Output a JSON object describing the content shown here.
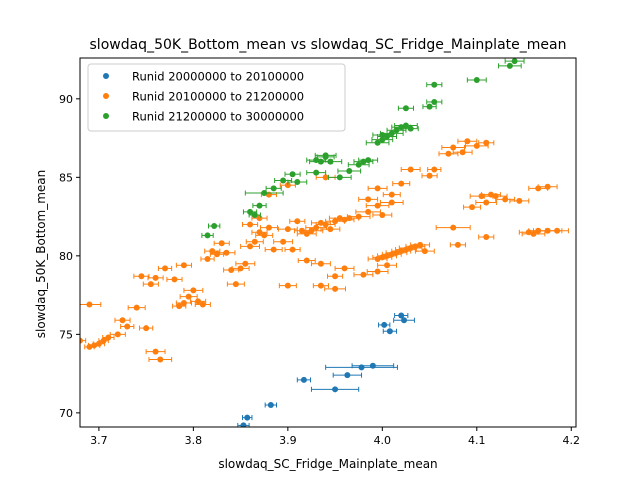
{
  "chart_data": {
    "type": "scatter",
    "title": "slowdaq_50K_Bottom_mean vs slowdaq_SC_Fridge_Mainplate_mean",
    "xlabel": "slowdaq_SC_Fridge_Mainplate_mean",
    "ylabel": "slowdaq_50K_Bottom_mean",
    "xlim": [
      3.68,
      4.205
    ],
    "ylim": [
      69.1,
      92.6
    ],
    "xticks": [
      3.7,
      3.8,
      3.9,
      4.0,
      4.1,
      4.2
    ],
    "xtick_labels": [
      "3.7",
      "3.8",
      "3.9",
      "4.0",
      "4.1",
      "4.2"
    ],
    "yticks": [
      70,
      75,
      80,
      85,
      90
    ],
    "ytick_labels": [
      "70",
      "75",
      "80",
      "85",
      "90"
    ],
    "grid": false,
    "legend_position": "upper-left",
    "series": [
      {
        "name": "Runid 20000000 to 20100000",
        "color": "#1f77b4",
        "points": [
          [
            3.853,
            69.2,
            0.006
          ],
          [
            3.857,
            69.7,
            0.005
          ],
          [
            3.882,
            70.5,
            0.006
          ],
          [
            3.917,
            72.1,
            0.007
          ],
          [
            3.95,
            71.5,
            0.025
          ],
          [
            3.963,
            72.4,
            0.015
          ],
          [
            3.978,
            72.9,
            0.038
          ],
          [
            3.99,
            73.0,
            0.022
          ],
          [
            4.002,
            75.6,
            0.006
          ],
          [
            4.008,
            75.2,
            0.007
          ],
          [
            4.02,
            76.2,
            0.007
          ],
          [
            4.023,
            75.9,
            0.011
          ]
        ]
      },
      {
        "name": "Runid 20100000 to 21200000",
        "color": "#ff7f0e",
        "points": [
          [
            3.68,
            74.6,
            0.006
          ],
          [
            3.69,
            74.2,
            0.005
          ],
          [
            3.695,
            74.3,
            0.006
          ],
          [
            3.7,
            74.4,
            0.006
          ],
          [
            3.705,
            74.6,
            0.005
          ],
          [
            3.71,
            74.8,
            0.006
          ],
          [
            3.69,
            76.9,
            0.012
          ],
          [
            3.72,
            75.0,
            0.008
          ],
          [
            3.725,
            75.9,
            0.008
          ],
          [
            3.73,
            75.5,
            0.007
          ],
          [
            3.74,
            76.7,
            0.009
          ],
          [
            3.745,
            78.7,
            0.008
          ],
          [
            3.75,
            75.4,
            0.007
          ],
          [
            3.76,
            73.9,
            0.01
          ],
          [
            3.765,
            73.4,
            0.012
          ],
          [
            3.755,
            78.2,
            0.008
          ],
          [
            3.76,
            78.6,
            0.008
          ],
          [
            3.77,
            79.2,
            0.007
          ],
          [
            3.78,
            78.5,
            0.008
          ],
          [
            3.785,
            76.8,
            0.007
          ],
          [
            3.79,
            77.0,
            0.008
          ],
          [
            3.79,
            79.4,
            0.008
          ],
          [
            3.795,
            77.4,
            0.009
          ],
          [
            3.8,
            77.8,
            0.01
          ],
          [
            3.805,
            77.1,
            0.008
          ],
          [
            3.81,
            76.9,
            0.008
          ],
          [
            3.815,
            79.8,
            0.007
          ],
          [
            3.82,
            80.3,
            0.008
          ],
          [
            3.825,
            80.1,
            0.007
          ],
          [
            3.83,
            80.8,
            0.008
          ],
          [
            3.835,
            80.2,
            0.009
          ],
          [
            3.84,
            79.1,
            0.008
          ],
          [
            3.845,
            78.2,
            0.009
          ],
          [
            3.85,
            79.2,
            0.009
          ],
          [
            3.855,
            79.5,
            0.01
          ],
          [
            3.86,
            80.6,
            0.01
          ],
          [
            3.865,
            80.9,
            0.009
          ],
          [
            3.87,
            81.5,
            0.008
          ],
          [
            3.875,
            81.3,
            0.009
          ],
          [
            3.88,
            81.8,
            0.009
          ],
          [
            3.885,
            80.4,
            0.009
          ],
          [
            3.895,
            80.9,
            0.01
          ],
          [
            3.9,
            81.7,
            0.01
          ],
          [
            3.91,
            82.2,
            0.008
          ],
          [
            3.915,
            81.6,
            0.008
          ],
          [
            3.92,
            81.4,
            0.01
          ],
          [
            3.925,
            81.6,
            0.012
          ],
          [
            3.93,
            81.8,
            0.011
          ],
          [
            3.935,
            82.1,
            0.01
          ],
          [
            3.94,
            82.0,
            0.01
          ],
          [
            3.945,
            81.7,
            0.01
          ],
          [
            3.95,
            82.2,
            0.01
          ],
          [
            3.955,
            82.4,
            0.011
          ],
          [
            3.96,
            82.3,
            0.01
          ],
          [
            3.965,
            82.4,
            0.01
          ],
          [
            3.975,
            82.5,
            0.012
          ],
          [
            3.985,
            82.8,
            0.013
          ],
          [
            3.995,
            83.2,
            0.012
          ],
          [
            4.0,
            82.6,
            0.01
          ],
          [
            4.01,
            83.4,
            0.012
          ],
          [
            3.995,
            79.8,
            0.01
          ],
          [
            4.0,
            79.9,
            0.01
          ],
          [
            4.005,
            80.0,
            0.01
          ],
          [
            4.01,
            80.1,
            0.01
          ],
          [
            4.015,
            80.2,
            0.011
          ],
          [
            4.02,
            80.3,
            0.01
          ],
          [
            4.025,
            80.4,
            0.011
          ],
          [
            4.03,
            80.5,
            0.012
          ],
          [
            4.035,
            80.6,
            0.01
          ],
          [
            4.04,
            80.7,
            0.01
          ],
          [
            4.045,
            80.3,
            0.01
          ],
          [
            4.08,
            80.7,
            0.008
          ],
          [
            4.075,
            81.8,
            0.018
          ],
          [
            4.11,
            81.2,
            0.008
          ],
          [
            4.155,
            81.5,
            0.01
          ],
          [
            4.16,
            81.4,
            0.012
          ],
          [
            4.165,
            81.6,
            0.01
          ],
          [
            4.175,
            81.6,
            0.015
          ],
          [
            4.185,
            81.6,
            0.012
          ],
          [
            3.88,
            83.9,
            0.008
          ],
          [
            3.9,
            84.5,
            0.008
          ],
          [
            3.94,
            85.0,
            0.01
          ],
          [
            3.985,
            83.6,
            0.01
          ],
          [
            3.995,
            84.3,
            0.01
          ],
          [
            4.01,
            83.9,
            0.009
          ],
          [
            4.02,
            84.6,
            0.009
          ],
          [
            4.03,
            85.5,
            0.01
          ],
          [
            4.05,
            85.1,
            0.008
          ],
          [
            4.055,
            85.5,
            0.007
          ],
          [
            4.07,
            86.5,
            0.01
          ],
          [
            4.075,
            86.9,
            0.012
          ],
          [
            4.085,
            86.6,
            0.01
          ],
          [
            4.09,
            87.3,
            0.01
          ],
          [
            4.1,
            87.0,
            0.012
          ],
          [
            4.11,
            87.2,
            0.008
          ],
          [
            4.095,
            83.1,
            0.009
          ],
          [
            4.105,
            83.8,
            0.012
          ],
          [
            4.11,
            83.4,
            0.011
          ],
          [
            4.115,
            83.9,
            0.01
          ],
          [
            4.12,
            83.8,
            0.012
          ],
          [
            4.13,
            83.6,
            0.01
          ],
          [
            4.145,
            83.5,
            0.01
          ],
          [
            4.165,
            84.3,
            0.01
          ],
          [
            4.175,
            84.4,
            0.01
          ],
          [
            3.86,
            82.0,
            0.008
          ],
          [
            3.87,
            82.4,
            0.008
          ],
          [
            3.905,
            80.4,
            0.008
          ],
          [
            3.92,
            79.7,
            0.009
          ],
          [
            3.935,
            79.5,
            0.01
          ],
          [
            3.95,
            78.7,
            0.008
          ],
          [
            3.96,
            79.2,
            0.01
          ],
          [
            3.98,
            78.8,
            0.01
          ],
          [
            3.995,
            79.0,
            0.011
          ],
          [
            4.005,
            79.4,
            0.01
          ],
          [
            3.9,
            78.1,
            0.009
          ],
          [
            3.935,
            78.1,
            0.008
          ],
          [
            3.95,
            77.9,
            0.011
          ]
        ]
      },
      {
        "name": "Runid 21200000 to 30000000",
        "color": "#2ca02c",
        "points": [
          [
            3.815,
            81.3,
            0.006
          ],
          [
            3.822,
            81.9,
            0.006
          ],
          [
            3.86,
            82.8,
            0.007
          ],
          [
            3.865,
            82.6,
            0.006
          ],
          [
            3.87,
            83.2,
            0.007
          ],
          [
            3.875,
            84.0,
            0.02
          ],
          [
            3.885,
            84.3,
            0.008
          ],
          [
            3.895,
            84.8,
            0.009
          ],
          [
            3.905,
            85.2,
            0.008
          ],
          [
            3.91,
            84.7,
            0.01
          ],
          [
            3.93,
            85.3,
            0.01
          ],
          [
            3.93,
            86.1,
            0.01
          ],
          [
            3.94,
            86.4,
            0.011
          ],
          [
            3.945,
            86.0,
            0.012
          ],
          [
            3.955,
            85.0,
            0.012
          ],
          [
            3.965,
            85.4,
            0.012
          ],
          [
            3.975,
            85.8,
            0.011
          ],
          [
            3.98,
            86.0,
            0.01
          ],
          [
            3.985,
            86.1,
            0.01
          ],
          [
            3.995,
            87.2,
            0.012
          ],
          [
            4.0,
            87.4,
            0.011
          ],
          [
            4.005,
            87.6,
            0.01
          ],
          [
            4.01,
            87.8,
            0.012
          ],
          [
            4.015,
            88.0,
            0.01
          ],
          [
            4.02,
            88.2,
            0.01
          ],
          [
            4.025,
            88.3,
            0.012
          ],
          [
            4.03,
            88.1,
            0.008
          ],
          [
            4.0,
            87.7,
            0.01
          ],
          [
            4.025,
            89.4,
            0.008
          ],
          [
            4.05,
            89.5,
            0.007
          ],
          [
            4.055,
            89.8,
            0.008
          ],
          [
            4.055,
            90.9,
            0.008
          ],
          [
            4.1,
            91.2,
            0.01
          ],
          [
            4.135,
            92.1,
            0.012
          ],
          [
            4.14,
            92.4,
            0.01
          ],
          [
            3.935,
            86.0,
            0.012
          ],
          [
            3.94,
            86.3,
            0.009
          ]
        ]
      }
    ]
  }
}
